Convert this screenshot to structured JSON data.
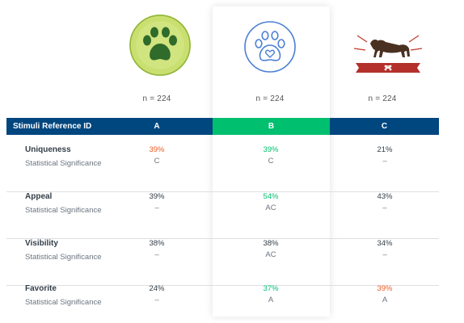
{
  "columns": [
    {
      "id": "A",
      "n_label": "n =  224"
    },
    {
      "id": "B",
      "n_label": "n =  224"
    },
    {
      "id": "C",
      "n_label": "n =  224"
    }
  ],
  "header": {
    "label": "Stimuli Reference ID",
    "a": "A",
    "b": "B",
    "c": "C"
  },
  "rows": [
    {
      "name": "Uniqueness",
      "sub": "Statistical Significance",
      "a": {
        "value": "39%",
        "sig": "C",
        "tone": "orange"
      },
      "b": {
        "value": "39%",
        "sig": "C",
        "tone": "green"
      },
      "c": {
        "value": "21%",
        "sig": "–",
        "tone": "normal"
      }
    },
    {
      "name": "Appeal",
      "sub": "Statistical Significance",
      "a": {
        "value": "39%",
        "sig": "–",
        "tone": "normal"
      },
      "b": {
        "value": "54%",
        "sig": "AC",
        "tone": "green"
      },
      "c": {
        "value": "43%",
        "sig": "–",
        "tone": "normal"
      }
    },
    {
      "name": "Visibility",
      "sub": "Statistical Significance",
      "a": {
        "value": "38%",
        "sig": "–",
        "tone": "normal"
      },
      "b": {
        "value": "38%",
        "sig": "AC",
        "tone": "normal"
      },
      "c": {
        "value": "34%",
        "sig": "–",
        "tone": "normal"
      }
    },
    {
      "name": "Favorite",
      "sub": "Statistical Significance",
      "a": {
        "value": "24%",
        "sig": "–",
        "tone": "normal"
      },
      "b": {
        "value": "37%",
        "sig": "A",
        "tone": "green"
      },
      "c": {
        "value": "39%",
        "sig": "A",
        "tone": "orange"
      }
    }
  ],
  "colors": {
    "header_bg": "#00467f",
    "highlight": "#00bf6f",
    "positive": "#00bf6f",
    "negative": "#f05b24"
  },
  "icons": [
    "green-paw-logo",
    "blue-paw-heart-logo",
    "dog-banner-logo"
  ]
}
